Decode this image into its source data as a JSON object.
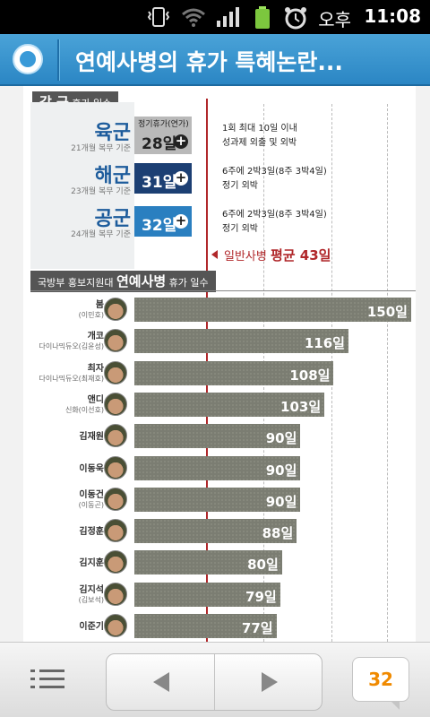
{
  "status_bar": {
    "ampm": "오후",
    "time": "11:08",
    "icons": [
      "vibrate-icon",
      "wifi-icon",
      "signal-icon",
      "battery-icon",
      "alarm-icon"
    ]
  },
  "header": {
    "title": "연예사병의 휴가 특혜논란..."
  },
  "article": {
    "section1_title": "각 군",
    "section1_sub": "휴가 일수",
    "branches": [
      {
        "name": "육군",
        "sub": "21개월 복무 기준",
        "box_label": "정기휴가(연가)",
        "days": "28일",
        "note1": "1회 최대 10일 이내",
        "note2": "성과제 외출 및 외박",
        "color": "#b8b8b8"
      },
      {
        "name": "해군",
        "sub": "23개월 복무 기준",
        "box_label": "",
        "days": "31일",
        "note1": "6주에 2박3일(8주 3박4일)",
        "note2": "정기 외박",
        "color": "#1c3f73"
      },
      {
        "name": "공군",
        "sub": "24개월 복무 기준",
        "box_label": "",
        "days": "32일",
        "note1": "6주에 2박3일(8주 3박4일)",
        "note2": "정기 외박",
        "color": "#2a7fc0"
      }
    ],
    "average": {
      "prefix": "일반사병",
      "bold": "평균 43일"
    },
    "section2_prefix": "국방부 홍보지원대",
    "section2_title": "연예사병",
    "section2_sub": "휴가 일수"
  },
  "chart_data": {
    "type": "bar",
    "categories": [
      "붐",
      "개코",
      "최자",
      "앤디",
      "김재원",
      "이동욱",
      "이동건",
      "김정훈",
      "김지훈",
      "김지석",
      "이준기"
    ],
    "subtitles": [
      "(이민호)",
      "다이나믹듀오(김윤성)",
      "다이나믹듀오(최재호)",
      "신화(이선호)",
      "",
      "",
      "(이동곤)",
      "",
      "",
      "(김보석)",
      ""
    ],
    "values": [
      150,
      116,
      108,
      103,
      90,
      90,
      90,
      88,
      80,
      79,
      77
    ],
    "value_labels": [
      "150일",
      "116일",
      "108일",
      "103일",
      "90일",
      "90일",
      "90일",
      "88일",
      "80일",
      "79일",
      "77일"
    ],
    "reference_line": 43
  },
  "bottom_bar": {
    "comment_count": "32"
  }
}
